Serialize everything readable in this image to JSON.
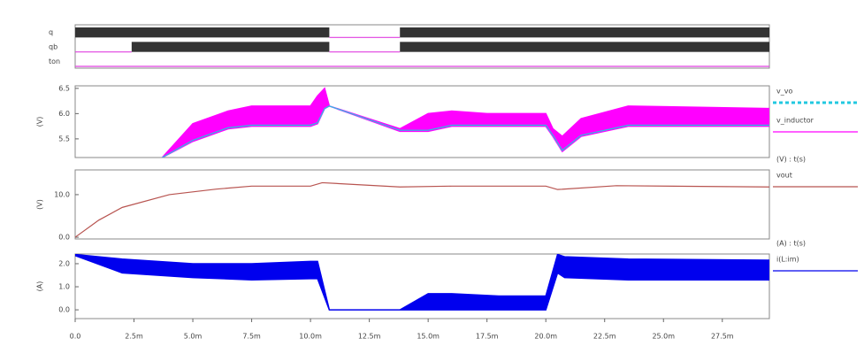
{
  "chart_data": [
    {
      "type": "timing",
      "xlim": [
        0,
        0.0295
      ],
      "series": [
        {
          "name": "q",
          "color": "#333333",
          "x": [
            0,
            0.0108,
            0.0138
          ],
          "values": [
            1,
            0,
            1
          ]
        },
        {
          "name": "qb",
          "color": "#333333",
          "x": [
            0,
            0.0024,
            0.0108,
            0.0138
          ],
          "values": [
            0,
            1,
            0,
            1
          ]
        },
        {
          "name": "ton",
          "color": "#333333",
          "x": [
            0
          ],
          "values": [
            0
          ]
        }
      ],
      "low_color": "#e040e0"
    },
    {
      "type": "waveform",
      "ylabel": "(V)",
      "xlim": [
        0,
        0.0295
      ],
      "ylim": [
        5.13,
        6.55
      ],
      "yticks": [
        {
          "value": 5.5,
          "label": "5.5"
        },
        {
          "value": 6,
          "label": "6.0"
        },
        6.5
      ],
      "series": [
        {
          "name": "v_vo",
          "color": "#22c8e0",
          "dashed": true,
          "x": [
            0.0037,
            0.005,
            0.0065,
            0.0075,
            0.01,
            0.0103,
            0.0106,
            0.0108,
            0.0138,
            0.015,
            0.016,
            0.0175,
            0.02,
            0.0203,
            0.0207,
            0.0215,
            0.0235,
            0.0295
          ],
          "values": [
            5.13,
            5.47,
            5.72,
            5.77,
            5.77,
            5.82,
            6.1,
            6.15,
            5.67,
            5.67,
            5.77,
            5.77,
            5.77,
            5.57,
            5.27,
            5.57,
            5.77,
            5.77
          ]
        },
        {
          "name": "v_inductor",
          "color": "#ff00ff",
          "x": [
            0.0037,
            0.005,
            0.0065,
            0.0075,
            0.01,
            0.0103,
            0.0106,
            0.0108,
            0.0138,
            0.015,
            0.016,
            0.0175,
            0.02,
            0.0203,
            0.0207,
            0.0215,
            0.0235,
            0.0295
          ],
          "high": [
            5.13,
            5.8,
            6.05,
            6.15,
            6.15,
            6.35,
            6.5,
            6.15,
            5.7,
            6.0,
            6.05,
            6.0,
            6.0,
            5.7,
            5.55,
            5.9,
            6.15,
            6.1
          ],
          "low": [
            5.13,
            5.45,
            5.7,
            5.75,
            5.75,
            5.8,
            6.1,
            6.15,
            5.65,
            5.65,
            5.75,
            5.75,
            5.75,
            5.55,
            5.25,
            5.55,
            5.75,
            5.75
          ]
        }
      ]
    },
    {
      "type": "waveform",
      "ylabel": "(V)",
      "legend_header": "(V) : t(s)",
      "xlim": [
        0,
        0.0295
      ],
      "ylim": [
        -0.4,
        15.8
      ],
      "yticks": [
        {
          "value": 0,
          "label": "0.0"
        },
        {
          "value": 10,
          "label": "10.0"
        }
      ],
      "series": [
        {
          "name": "vout",
          "color": "#b85450",
          "x": [
            0,
            0.001,
            0.002,
            0.004,
            0.006,
            0.0075,
            0.01,
            0.0105,
            0.0138,
            0.016,
            0.02,
            0.0205,
            0.023,
            0.0295
          ],
          "values": [
            0,
            4,
            7,
            10,
            11.3,
            12,
            12,
            12.8,
            11.8,
            12,
            12,
            11.2,
            12.1,
            11.8
          ]
        }
      ]
    },
    {
      "type": "waveform",
      "ylabel": "(A)",
      "legend_header": "(A) : t(s)",
      "xlim": [
        0,
        0.0295
      ],
      "ylim": [
        -0.38,
        2.42
      ],
      "yticks": [
        {
          "value": 0,
          "label": "0.0"
        },
        {
          "value": 1,
          "label": "1.0"
        },
        {
          "value": 2,
          "label": "2.0"
        }
      ],
      "xticks": [
        {
          "value": 0,
          "label": "0.0"
        },
        {
          "value": 0.0025,
          "label": "2.5m"
        },
        {
          "value": 0.005,
          "label": "5.0m"
        },
        {
          "value": 0.0075,
          "label": "7.5m"
        },
        {
          "value": 0.01,
          "label": "10.0m"
        },
        {
          "value": 0.0125,
          "label": "12.5m"
        },
        {
          "value": 0.015,
          "label": "15.0m"
        },
        {
          "value": 0.0175,
          "label": "17.5m"
        },
        {
          "value": 0.02,
          "label": "20.0m"
        },
        {
          "value": 0.0225,
          "label": "22.5m"
        },
        {
          "value": 0.025,
          "label": "25.0m"
        },
        {
          "value": 0.0275,
          "label": "27.5m"
        }
      ],
      "series": [
        {
          "name": "i(L:im)",
          "color": "#0000ee",
          "x": [
            0,
            0.002,
            0.005,
            0.0075,
            0.01,
            0.0103,
            0.0108,
            0.011,
            0.0138,
            0.015,
            0.016,
            0.018,
            0.02,
            0.0205,
            0.0208,
            0.0235,
            0.0295
          ],
          "high": [
            2.4,
            2.2,
            2.0,
            2.0,
            2.1,
            2.1,
            0,
            0,
            0,
            0.7,
            0.7,
            0.6,
            0.6,
            2.4,
            2.3,
            2.2,
            2.15
          ],
          "low": [
            2.35,
            1.6,
            1.4,
            1.3,
            1.35,
            1.35,
            0,
            0,
            0,
            0,
            0,
            0,
            0,
            1.6,
            1.4,
            1.3,
            1.3
          ]
        }
      ]
    }
  ]
}
